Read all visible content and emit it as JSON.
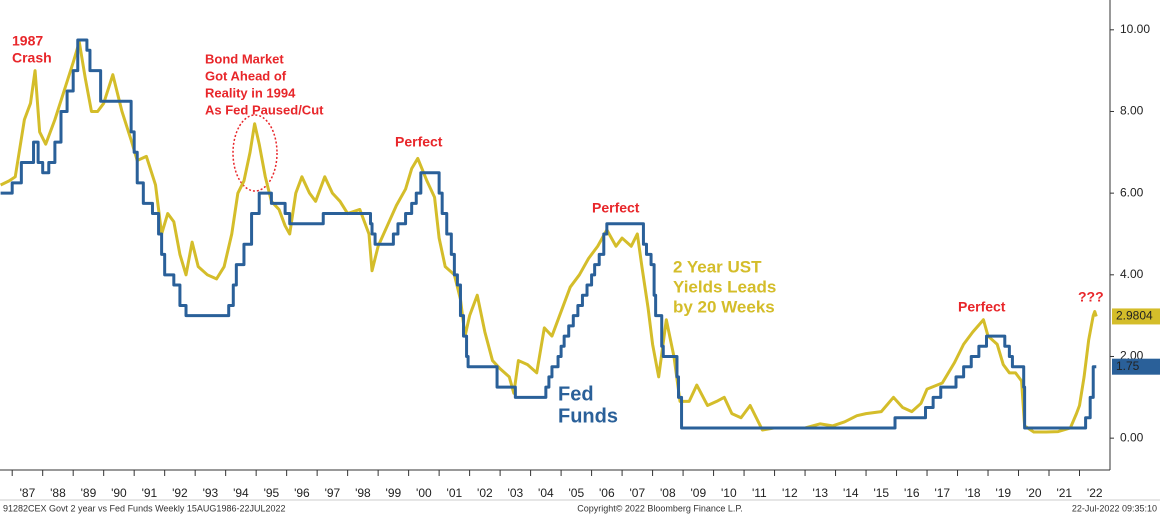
{
  "chart_data": {
    "type": "line",
    "xlim": [
      1986.6,
      2023.0
    ],
    "ylim": [
      -0.78,
      10.73
    ],
    "xticks": [
      {
        "value": 1987,
        "label": "'87"
      },
      {
        "value": 1988,
        "label": "'88"
      },
      {
        "value": 1989,
        "label": "'89"
      },
      {
        "value": 1990,
        "label": "'90"
      },
      {
        "value": 1991,
        "label": "'91"
      },
      {
        "value": 1992,
        "label": "'92"
      },
      {
        "value": 1993,
        "label": "'93"
      },
      {
        "value": 1994,
        "label": "'94"
      },
      {
        "value": 1995,
        "label": "'95"
      },
      {
        "value": 1996,
        "label": "'96"
      },
      {
        "value": 1997,
        "label": "'97"
      },
      {
        "value": 1998,
        "label": "'98"
      },
      {
        "value": 1999,
        "label": "'99"
      },
      {
        "value": 2000,
        "label": "'00"
      },
      {
        "value": 2001,
        "label": "'01"
      },
      {
        "value": 2002,
        "label": "'02"
      },
      {
        "value": 2003,
        "label": "'03"
      },
      {
        "value": 2004,
        "label": "'04"
      },
      {
        "value": 2005,
        "label": "'05"
      },
      {
        "value": 2006,
        "label": "'06"
      },
      {
        "value": 2007,
        "label": "'07"
      },
      {
        "value": 2008,
        "label": "'08"
      },
      {
        "value": 2009,
        "label": "'09"
      },
      {
        "value": 2010,
        "label": "'10"
      },
      {
        "value": 2011,
        "label": "'11"
      },
      {
        "value": 2012,
        "label": "'12"
      },
      {
        "value": 2013,
        "label": "'13"
      },
      {
        "value": 2014,
        "label": "'14"
      },
      {
        "value": 2015,
        "label": "'15"
      },
      {
        "value": 2016,
        "label": "'16"
      },
      {
        "value": 2017,
        "label": "'17"
      },
      {
        "value": 2018,
        "label": "'18"
      },
      {
        "value": 2019,
        "label": "'19"
      },
      {
        "value": 2020,
        "label": "'20"
      },
      {
        "value": 2021,
        "label": "'21"
      },
      {
        "value": 2022,
        "label": "'22"
      }
    ],
    "yticks": [
      {
        "value": 10,
        "label": "10.00"
      },
      {
        "value": 8,
        "label": "8.00"
      },
      {
        "value": 6,
        "label": "6.00"
      },
      {
        "value": 4,
        "label": "4.00"
      },
      {
        "value": 2,
        "label": "2.00"
      },
      {
        "value": 0,
        "label": "0.00"
      }
    ],
    "grid": false,
    "series": [
      {
        "color": "#d4bd2a",
        "step": false,
        "last_label": "2.9804",
        "x": [
          1986.62,
          1986.9,
          1987.1,
          1987.4,
          1987.6,
          1987.75,
          1987.9,
          1988.1,
          1988.4,
          1988.7,
          1989.0,
          1989.2,
          1989.4,
          1989.6,
          1989.8,
          1990.0,
          1990.3,
          1990.6,
          1990.9,
          1991.1,
          1991.4,
          1991.7,
          1991.9,
          1992.1,
          1992.3,
          1992.5,
          1992.7,
          1992.9,
          1993.1,
          1993.4,
          1993.7,
          1993.95,
          1994.2,
          1994.4,
          1994.6,
          1994.8,
          1994.95,
          1995.1,
          1995.3,
          1995.5,
          1995.75,
          1995.95,
          1996.1,
          1996.3,
          1996.5,
          1996.75,
          1996.95,
          1997.25,
          1997.5,
          1997.75,
          1998.0,
          1998.4,
          1998.7,
          1998.8,
          1999.0,
          1999.3,
          1999.6,
          1999.9,
          2000.1,
          2000.3,
          2000.6,
          2000.85,
          2001.0,
          2001.2,
          2001.5,
          2001.7,
          2001.85,
          2002.0,
          2002.25,
          2002.5,
          2002.75,
          2003.0,
          2003.3,
          2003.45,
          2003.6,
          2003.9,
          2004.2,
          2004.45,
          2004.7,
          2005.0,
          2005.3,
          2005.6,
          2005.9,
          2006.2,
          2006.5,
          2006.8,
          2007.0,
          2007.3,
          2007.5,
          2007.65,
          2007.85,
          2008.0,
          2008.2,
          2008.45,
          2008.7,
          2008.9,
          2009.2,
          2009.45,
          2009.8,
          2010.1,
          2010.35,
          2010.6,
          2010.9,
          2011.2,
          2011.6,
          2012.0,
          2012.5,
          2013.0,
          2013.5,
          2013.9,
          2014.3,
          2014.7,
          2015.0,
          2015.5,
          2015.9,
          2016.2,
          2016.5,
          2016.8,
          2017.0,
          2017.5,
          2017.9,
          2018.2,
          2018.5,
          2018.85,
          2019.0,
          2019.3,
          2019.5,
          2019.7,
          2019.9,
          2020.1,
          2020.2,
          2020.5,
          2020.9,
          2021.3,
          2021.7,
          2021.9,
          2022.0,
          2022.15,
          2022.3,
          2022.45,
          2022.5,
          2022.55
        ],
        "values": [
          6.2,
          6.3,
          6.4,
          7.8,
          8.2,
          9.0,
          7.5,
          7.2,
          7.8,
          8.5,
          9.2,
          9.7,
          8.8,
          8.0,
          8.0,
          8.2,
          8.9,
          8.0,
          7.3,
          6.8,
          6.9,
          6.2,
          5.0,
          5.5,
          5.3,
          4.5,
          4.0,
          4.8,
          4.2,
          4.0,
          3.9,
          4.2,
          5.0,
          6.0,
          6.3,
          7.0,
          7.7,
          7.2,
          6.4,
          5.8,
          5.6,
          5.2,
          5.0,
          6.0,
          6.4,
          6.0,
          5.8,
          6.4,
          6.0,
          5.8,
          5.5,
          5.6,
          5.0,
          4.1,
          4.7,
          5.2,
          5.7,
          6.1,
          6.6,
          6.85,
          6.3,
          5.9,
          4.9,
          4.2,
          4.0,
          3.4,
          2.5,
          3.0,
          3.5,
          2.6,
          1.9,
          1.7,
          1.5,
          1.1,
          1.9,
          1.8,
          1.6,
          2.7,
          2.5,
          3.1,
          3.7,
          4.0,
          4.4,
          4.7,
          5.1,
          4.7,
          4.9,
          4.7,
          5.0,
          4.2,
          3.2,
          2.3,
          1.5,
          2.9,
          2.0,
          0.9,
          0.9,
          1.3,
          0.8,
          0.9,
          1.0,
          0.6,
          0.5,
          0.8,
          0.2,
          0.25,
          0.25,
          0.25,
          0.35,
          0.3,
          0.4,
          0.55,
          0.6,
          0.65,
          1.0,
          0.75,
          0.65,
          0.85,
          1.2,
          1.35,
          1.85,
          2.3,
          2.6,
          2.9,
          2.5,
          2.3,
          1.8,
          1.6,
          1.6,
          1.4,
          0.3,
          0.15,
          0.15,
          0.16,
          0.25,
          0.6,
          0.8,
          1.5,
          2.4,
          3.0,
          3.1,
          2.9804
        ]
      },
      {
        "color": "#2a6099",
        "step": true,
        "last_label": "1.75",
        "x": [
          1986.62,
          1987.0,
          1987.3,
          1987.7,
          1987.85,
          1988.0,
          1988.2,
          1988.4,
          1988.6,
          1988.8,
          1989.0,
          1989.15,
          1989.45,
          1989.55,
          1989.9,
          1990.9,
          1991.0,
          1991.1,
          1991.3,
          1991.6,
          1991.8,
          1991.9,
          1992.0,
          1992.3,
          1992.5,
          1992.7,
          1994.1,
          1994.25,
          1994.35,
          1994.6,
          1994.85,
          1995.1,
          1995.5,
          1995.95,
          1996.1,
          1997.2,
          1998.75,
          1998.8,
          1998.9,
          1999.5,
          1999.65,
          1999.9,
          2000.1,
          2000.25,
          2000.4,
          2001.0,
          2001.1,
          2001.25,
          2001.4,
          2001.5,
          2001.6,
          2001.7,
          2001.8,
          2001.9,
          2001.95,
          2002.9,
          2003.5,
          2004.5,
          2004.6,
          2004.7,
          2004.9,
          2005.0,
          2005.1,
          2005.25,
          2005.4,
          2005.55,
          2005.7,
          2005.85,
          2006.0,
          2006.1,
          2006.25,
          2006.4,
          2006.5,
          2007.7,
          2007.8,
          2007.95,
          2008.05,
          2008.1,
          2008.3,
          2008.35,
          2008.8,
          2008.85,
          2008.95,
          2015.95,
          2016.95,
          2017.2,
          2017.45,
          2017.95,
          2018.2,
          2018.45,
          2018.7,
          2018.95,
          2019.55,
          2019.7,
          2019.8,
          2020.17,
          2020.2,
          2022.2,
          2022.35,
          2022.45,
          2022.55
        ],
        "values": [
          6.0,
          6.25,
          6.75,
          7.25,
          6.75,
          6.5,
          6.75,
          7.25,
          8.0,
          8.5,
          9.0,
          9.75,
          9.5,
          9.0,
          8.25,
          7.5,
          7.0,
          6.25,
          5.75,
          5.5,
          5.0,
          4.5,
          4.0,
          3.75,
          3.25,
          3.0,
          3.25,
          3.75,
          4.25,
          4.75,
          5.5,
          6.0,
          5.75,
          5.5,
          5.25,
          5.5,
          5.25,
          5.0,
          4.75,
          5.0,
          5.25,
          5.5,
          5.75,
          6.0,
          6.5,
          6.0,
          5.5,
          5.0,
          4.5,
          4.0,
          3.75,
          3.0,
          2.5,
          2.0,
          1.75,
          1.25,
          1.0,
          1.25,
          1.5,
          1.75,
          2.0,
          2.25,
          2.5,
          2.75,
          3.0,
          3.25,
          3.5,
          3.75,
          4.0,
          4.25,
          4.5,
          5.0,
          5.25,
          4.75,
          4.5,
          4.25,
          3.5,
          3.0,
          2.25,
          2.0,
          1.5,
          1.0,
          0.25,
          0.5,
          0.75,
          1.0,
          1.25,
          1.5,
          1.75,
          2.0,
          2.25,
          2.5,
          2.25,
          2.0,
          1.75,
          1.25,
          0.25,
          0.5,
          1.0,
          1.75,
          1.75
        ]
      }
    ],
    "annotations": [
      {
        "lines": [
          "1987",
          "Crash"
        ],
        "color": "#e8262a"
      },
      {
        "lines": [
          "Bond Market",
          "Got Ahead of",
          "Reality in 1994",
          "As Fed Paused/Cut"
        ],
        "color": "#e8262a"
      },
      {
        "lines": [
          "Perfect"
        ],
        "color": "#e8262a"
      },
      {
        "lines": [
          "Perfect"
        ],
        "color": "#e8262a"
      },
      {
        "lines": [
          "Perfect"
        ],
        "color": "#e8262a"
      },
      {
        "lines": [
          "???"
        ],
        "color": "#e8262a"
      },
      {
        "lines": [
          "2 Year UST",
          "Yields Leads",
          "by 20 Weeks"
        ],
        "color": "#d4bd2a"
      },
      {
        "lines": [
          "Fed",
          "Funds"
        ],
        "color": "#2a6099"
      }
    ]
  },
  "footer": {
    "left": "91282CEX Govt 2 year vs Fed Funds  Weekly 15AUG1986-22JUL2022",
    "center": "Copyright© 2022 Bloomberg Finance L.P.",
    "right": "22-Jul-2022 09:35:10"
  }
}
